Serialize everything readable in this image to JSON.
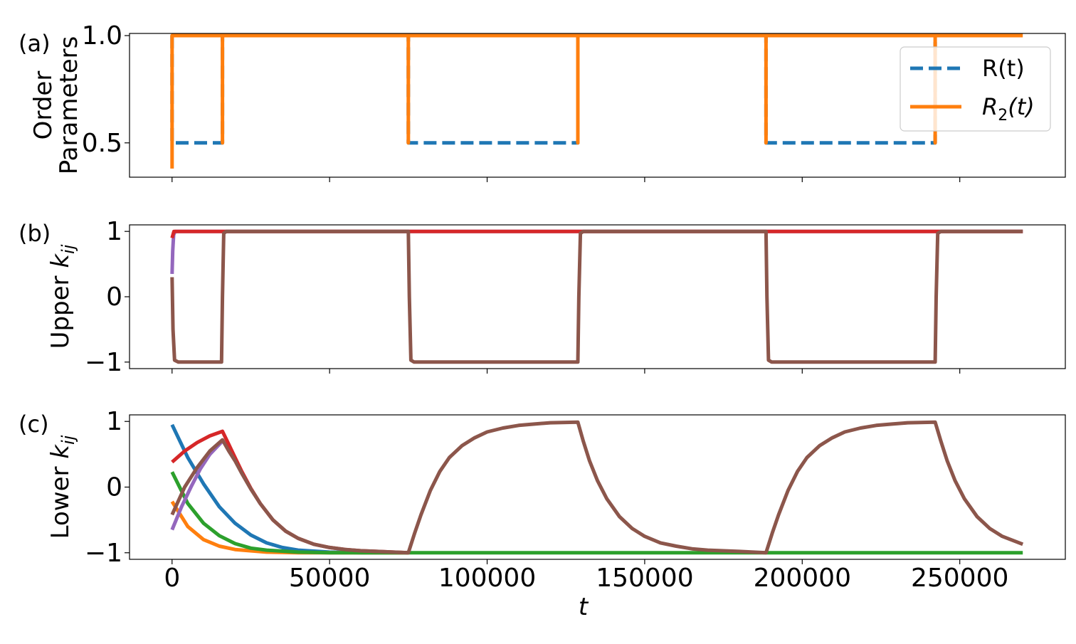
{
  "chart_data": [
    {
      "panel_label": "(a)",
      "type": "line",
      "ylabel_lines": [
        "Order",
        "Parameters"
      ],
      "xlim": [
        -13500,
        283500
      ],
      "ylim": [
        0.34,
        1.01
      ],
      "xticks": [
        0,
        50000,
        100000,
        150000,
        200000,
        250000
      ],
      "yticks": [
        0.5,
        1.0
      ],
      "ytick_labels": [
        "0.5",
        "1.0"
      ],
      "legend": {
        "placement": "top-right",
        "entries": [
          {
            "series": 0,
            "text": "R(t)"
          },
          {
            "series": 1,
            "text_main": "R",
            "text_sub": "2",
            "text_tail": "(t)"
          }
        ]
      },
      "series": [
        {
          "label": "R(t)",
          "color": "#1f77b4",
          "style": "dashed",
          "points": [
            [
              0,
              1.0
            ],
            [
              0,
              0.5
            ],
            [
              16000,
              0.5
            ],
            [
              16000,
              1.0
            ],
            [
              75000,
              1.0
            ],
            [
              75000,
              0.5
            ],
            [
              128800,
              0.5
            ],
            [
              128800,
              1.0
            ],
            [
              188500,
              1.0
            ],
            [
              188500,
              0.5
            ],
            [
              242200,
              0.5
            ],
            [
              242200,
              1.0
            ],
            [
              270000,
              1.0
            ]
          ]
        },
        {
          "label": "R2(t)",
          "color": "#ff7f0e",
          "style": "solid",
          "points": [
            [
              0,
              0.38
            ],
            [
              0,
              1.0
            ],
            [
              16000,
              1.0
            ],
            [
              16000,
              0.5
            ],
            [
              16000,
              1.0
            ],
            [
              75000,
              1.0
            ],
            [
              75000,
              0.5
            ],
            [
              75000,
              1.0
            ],
            [
              128800,
              1.0
            ],
            [
              128800,
              0.5
            ],
            [
              128800,
              1.0
            ],
            [
              188500,
              1.0
            ],
            [
              188500,
              0.5
            ],
            [
              188500,
              1.0
            ],
            [
              242200,
              1.0
            ],
            [
              242200,
              0.5
            ],
            [
              242200,
              1.0
            ],
            [
              270000,
              1.0
            ]
          ]
        }
      ]
    },
    {
      "panel_label": "(b)",
      "type": "line",
      "ylabel_main": "Upper ",
      "ylabel_var": "k",
      "ylabel_sub": "ij",
      "xlim": [
        -13500,
        283500
      ],
      "ylim": [
        -1.1,
        1.1
      ],
      "xticks": [
        0,
        50000,
        100000,
        150000,
        200000,
        250000
      ],
      "yticks": [
        -1,
        0,
        1
      ],
      "ytick_labels": [
        "−1",
        "0",
        "1"
      ],
      "series": [
        {
          "color": "#9467bd",
          "style": "solid",
          "points": [
            [
              0,
              0.35
            ],
            [
              200,
              0.7
            ],
            [
              500,
              0.95
            ],
            [
              1000,
              1.0
            ],
            [
              270000,
              1.0
            ]
          ]
        },
        {
          "color": "#d62728",
          "style": "solid",
          "points": [
            [
              0,
              0.9
            ],
            [
              600,
              1.0
            ],
            [
              270000,
              1.0
            ]
          ]
        },
        {
          "color": "#8c564b",
          "style": "solid",
          "points": [
            [
              0,
              0.3
            ],
            [
              300,
              -0.5
            ],
            [
              800,
              -0.97
            ],
            [
              2000,
              -1.0
            ],
            [
              15700,
              -1.0
            ],
            [
              16000,
              0.0
            ],
            [
              16400,
              0.97
            ],
            [
              17200,
              1.0
            ],
            [
              75000,
              1.0
            ],
            [
              75300,
              0.0
            ],
            [
              75800,
              -0.97
            ],
            [
              76800,
              -1.0
            ],
            [
              128800,
              -1.0
            ],
            [
              129100,
              0.0
            ],
            [
              129600,
              0.97
            ],
            [
              130500,
              1.0
            ],
            [
              188500,
              1.0
            ],
            [
              188800,
              0.0
            ],
            [
              189300,
              -0.97
            ],
            [
              190300,
              -1.0
            ],
            [
              242200,
              -1.0
            ],
            [
              242500,
              0.0
            ],
            [
              243000,
              0.97
            ],
            [
              244000,
              1.0
            ],
            [
              270000,
              1.0
            ]
          ]
        }
      ]
    },
    {
      "panel_label": "(c)",
      "type": "line",
      "ylabel_main": "Lower ",
      "ylabel_var": "k",
      "ylabel_sub": "ij",
      "xlabel": "t",
      "xlim": [
        -13500,
        283500
      ],
      "ylim": [
        -1.1,
        1.1
      ],
      "xticks": [
        0,
        50000,
        100000,
        150000,
        200000,
        250000
      ],
      "xtick_labels": [
        "0",
        "50000",
        "100000",
        "150000",
        "200000",
        "250000"
      ],
      "yticks": [
        -1,
        0,
        1
      ],
      "ytick_labels": [
        "−1",
        "0",
        "1"
      ],
      "series": [
        {
          "color": "#1f77b4",
          "style": "solid",
          "points": [
            [
              0,
              0.95
            ],
            [
              5000,
              0.45
            ],
            [
              10000,
              0.05
            ],
            [
              15000,
              -0.3
            ],
            [
              20000,
              -0.55
            ],
            [
              25000,
              -0.73
            ],
            [
              30000,
              -0.85
            ],
            [
              35000,
              -0.92
            ],
            [
              40000,
              -0.96
            ],
            [
              50000,
              -0.99
            ],
            [
              60000,
              -1.0
            ],
            [
              75000,
              -1.0
            ]
          ]
        },
        {
          "color": "#ff7f0e",
          "style": "solid",
          "points": [
            [
              0,
              -0.22
            ],
            [
              5000,
              -0.6
            ],
            [
              10000,
              -0.8
            ],
            [
              15000,
              -0.9
            ],
            [
              20000,
              -0.95
            ],
            [
              30000,
              -0.99
            ],
            [
              40000,
              -1.0
            ],
            [
              75000,
              -1.0
            ]
          ]
        },
        {
          "color": "#2ca02c",
          "style": "solid",
          "points": [
            [
              0,
              0.23
            ],
            [
              5000,
              -0.25
            ],
            [
              10000,
              -0.55
            ],
            [
              15000,
              -0.74
            ],
            [
              20000,
              -0.86
            ],
            [
              25000,
              -0.93
            ],
            [
              30000,
              -0.96
            ],
            [
              40000,
              -0.99
            ],
            [
              50000,
              -1.0
            ],
            [
              270000,
              -1.0
            ]
          ]
        },
        {
          "color": "#d62728",
          "style": "solid",
          "points": [
            [
              0,
              0.38
            ],
            [
              4000,
              0.55
            ],
            [
              8000,
              0.68
            ],
            [
              12000,
              0.78
            ],
            [
              16000,
              0.85
            ],
            [
              18000,
              0.65
            ],
            [
              20000,
              0.45
            ],
            [
              22000,
              0.25
            ],
            [
              25000,
              -0.02
            ],
            [
              28000,
              -0.25
            ],
            [
              32000,
              -0.5
            ],
            [
              36000,
              -0.67
            ],
            [
              40000,
              -0.78
            ],
            [
              45000,
              -0.87
            ],
            [
              50000,
              -0.92
            ],
            [
              55000,
              -0.95
            ],
            [
              60000,
              -0.97
            ],
            [
              65000,
              -0.98
            ],
            [
              75000,
              -1.0
            ]
          ]
        },
        {
          "color": "#9467bd",
          "style": "solid",
          "points": [
            [
              0,
              -0.65
            ],
            [
              3000,
              -0.3
            ],
            [
              6000,
              0.0
            ],
            [
              9000,
              0.28
            ],
            [
              12000,
              0.5
            ],
            [
              16000,
              0.7
            ]
          ]
        },
        {
          "color": "#8c564b",
          "style": "solid",
          "points": [
            [
              0,
              -0.42
            ],
            [
              4000,
              0.0
            ],
            [
              8000,
              0.3
            ],
            [
              12000,
              0.55
            ],
            [
              16000,
              0.72
            ],
            [
              18000,
              0.55
            ],
            [
              20000,
              0.4
            ],
            [
              22000,
              0.22
            ],
            [
              25000,
              -0.03
            ],
            [
              28000,
              -0.25
            ],
            [
              32000,
              -0.5
            ],
            [
              36000,
              -0.67
            ],
            [
              40000,
              -0.78
            ],
            [
              45000,
              -0.87
            ],
            [
              50000,
              -0.92
            ],
            [
              55000,
              -0.95
            ],
            [
              60000,
              -0.97
            ],
            [
              65000,
              -0.98
            ],
            [
              75000,
              -1.0
            ],
            [
              77000,
              -0.7
            ],
            [
              79000,
              -0.42
            ],
            [
              82000,
              -0.05
            ],
            [
              85000,
              0.24
            ],
            [
              88000,
              0.45
            ],
            [
              92000,
              0.63
            ],
            [
              96000,
              0.75
            ],
            [
              100000,
              0.84
            ],
            [
              105000,
              0.9
            ],
            [
              110000,
              0.94
            ],
            [
              115000,
              0.96
            ],
            [
              120000,
              0.98
            ],
            [
              128800,
              0.99
            ],
            [
              130500,
              0.7
            ],
            [
              132500,
              0.4
            ],
            [
              135000,
              0.1
            ],
            [
              138000,
              -0.18
            ],
            [
              142000,
              -0.45
            ],
            [
              146000,
              -0.63
            ],
            [
              150000,
              -0.75
            ],
            [
              155000,
              -0.85
            ],
            [
              160000,
              -0.9
            ],
            [
              165000,
              -0.94
            ],
            [
              170000,
              -0.96
            ],
            [
              175000,
              -0.97
            ],
            [
              180000,
              -0.98
            ],
            [
              188500,
              -1.0
            ],
            [
              190500,
              -0.7
            ],
            [
              192500,
              -0.42
            ],
            [
              195500,
              -0.05
            ],
            [
              198500,
              0.24
            ],
            [
              201500,
              0.45
            ],
            [
              205500,
              0.63
            ],
            [
              209500,
              0.75
            ],
            [
              213500,
              0.84
            ],
            [
              218500,
              0.9
            ],
            [
              223500,
              0.94
            ],
            [
              228500,
              0.96
            ],
            [
              233500,
              0.98
            ],
            [
              242200,
              0.99
            ],
            [
              244000,
              0.7
            ],
            [
              246000,
              0.4
            ],
            [
              248500,
              0.1
            ],
            [
              251500,
              -0.18
            ],
            [
              255500,
              -0.45
            ],
            [
              259500,
              -0.63
            ],
            [
              263500,
              -0.75
            ],
            [
              270000,
              -0.87
            ]
          ]
        }
      ]
    }
  ]
}
